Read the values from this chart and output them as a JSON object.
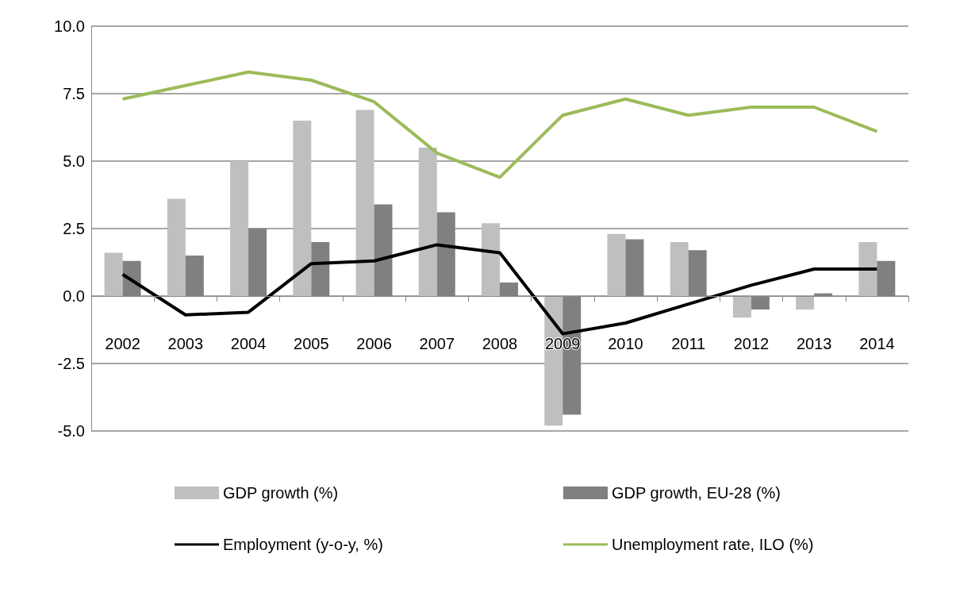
{
  "chart_data": {
    "type": "bar",
    "categories": [
      "2002",
      "2003",
      "2004",
      "2005",
      "2006",
      "2007",
      "2008",
      "2009",
      "2010",
      "2011",
      "2012",
      "2013",
      "2014"
    ],
    "series": [
      {
        "name": "GDP growth (%)",
        "color": "#bfbfbf",
        "values": [
          1.6,
          3.6,
          5.0,
          6.5,
          6.9,
          5.5,
          2.7,
          -4.8,
          2.3,
          2.0,
          -0.8,
          -0.5,
          2.0
        ]
      },
      {
        "name": "GDP growth, EU-28 (%)",
        "color": "#808080",
        "values": [
          1.3,
          1.5,
          2.5,
          2.0,
          3.4,
          3.1,
          0.5,
          -4.4,
          2.1,
          1.7,
          -0.5,
          0.1,
          1.3
        ]
      },
      {
        "name": "Employment (y-o-y, %)",
        "type": "line",
        "color": "#000000",
        "values": [
          0.8,
          -0.7,
          -0.6,
          1.2,
          1.3,
          1.9,
          1.6,
          -1.4,
          -1.0,
          -0.3,
          0.4,
          1.0,
          1.0
        ]
      },
      {
        "name": "Unemployment rate, ILO (%)",
        "type": "line",
        "color": "#9bbb59",
        "values": [
          7.3,
          7.8,
          8.3,
          8.0,
          7.2,
          5.3,
          4.4,
          6.7,
          7.3,
          6.7,
          7.0,
          7.0,
          6.1
        ]
      }
    ],
    "ylim": [
      -5,
      10
    ],
    "yticks": [
      {
        "value": -5,
        "label": "-5.0"
      },
      {
        "value": -2.5,
        "label": "-2.5"
      },
      {
        "value": 0,
        "label": "0.0"
      },
      {
        "value": 2.5,
        "label": "2.5"
      },
      {
        "value": 5,
        "label": "5.0"
      },
      {
        "value": 7.5,
        "label": "7.5"
      },
      {
        "value": 10,
        "label": "10.0"
      }
    ],
    "grid": "y",
    "legend": "bottom",
    "marker": "none",
    "line_style": "solid"
  }
}
